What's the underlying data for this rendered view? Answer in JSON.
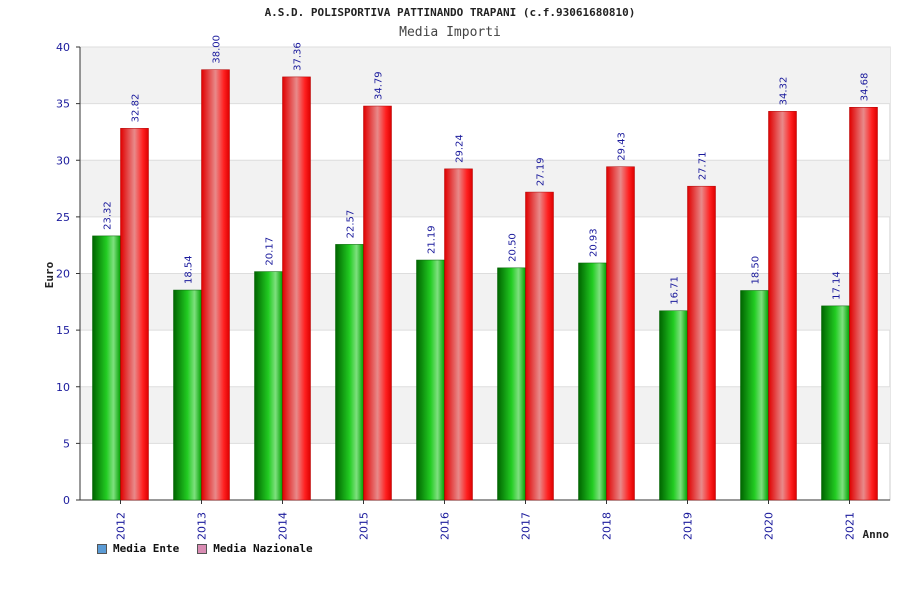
{
  "chart_data": {
    "type": "bar",
    "title": "A.S.D. POLISPORTIVA PATTINANDO TRAPANI (c.f.93061680810)",
    "subtitle": "Media Importi",
    "xlabel": "Anno",
    "ylabel": "Euro",
    "ylim": [
      0,
      40
    ],
    "yticks": [
      0,
      5,
      10,
      15,
      20,
      25,
      30,
      35,
      40
    ],
    "grid": true,
    "legend_position": "bottom-left",
    "categories": [
      "2012",
      "2013",
      "2014",
      "2015",
      "2016",
      "2017",
      "2018",
      "2019",
      "2020",
      "2021"
    ],
    "series": [
      {
        "name": "Media Ente",
        "color": "#00aa00",
        "legend_color": "#5b9bd5",
        "values": [
          23.32,
          18.54,
          20.17,
          22.57,
          21.19,
          20.5,
          20.93,
          16.71,
          18.5,
          17.14
        ],
        "labels": [
          "23.32",
          "18.54",
          "20.17",
          "22.57",
          "21.19",
          "20.50",
          "20.93",
          "16.71",
          "18.50",
          "17.14"
        ]
      },
      {
        "name": "Media Nazionale",
        "color": "#ee1111",
        "legend_color": "#d98cb3",
        "values": [
          32.82,
          38.0,
          37.36,
          34.79,
          29.24,
          27.19,
          29.43,
          27.71,
          34.32,
          34.68
        ],
        "labels": [
          "32.82",
          "38.00",
          "37.36",
          "34.79",
          "29.24",
          "27.19",
          "29.43",
          "27.71",
          "34.32",
          "34.68"
        ]
      }
    ]
  }
}
